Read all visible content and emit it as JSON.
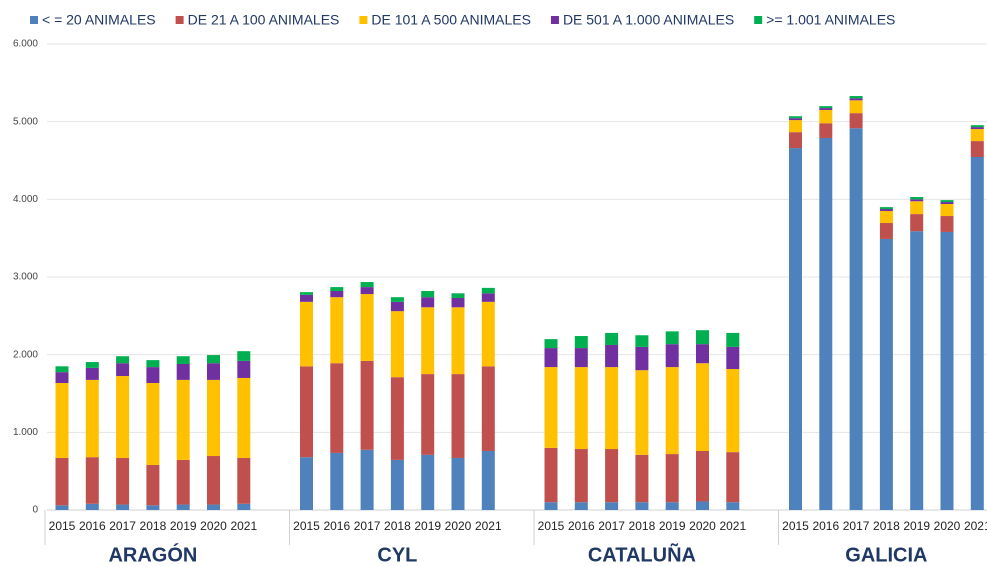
{
  "chart_data": {
    "type": "stacked_bar",
    "groups": [
      "ARAGÓN",
      "CYL",
      "CATALUÑA",
      "GALICIA"
    ],
    "categories": [
      "2015",
      "2016",
      "2017",
      "2018",
      "2019",
      "2020",
      "2021",
      "2015",
      "2016",
      "2017",
      "2018",
      "2019",
      "2020",
      "2021",
      "2015",
      "2016",
      "2017",
      "2018",
      "2019",
      "2020",
      "2021",
      "2015",
      "2016",
      "2017",
      "2018",
      "2019",
      "2020",
      "2021"
    ],
    "series": [
      {
        "name": "< = 20 ANIMALES",
        "color": "#4f81bd",
        "values": [
          60,
          80,
          70,
          60,
          70,
          70,
          80,
          680,
          735,
          775,
          645,
          710,
          670,
          760,
          100,
          100,
          100,
          100,
          100,
          110,
          100,
          4660,
          4790,
          4915,
          3490,
          3590,
          3580,
          4545
        ]
      },
      {
        "name": "DE 21 A 100 ANIMALES",
        "color": "#c0504d",
        "values": [
          610,
          600,
          600,
          520,
          575,
          625,
          590,
          1170,
          1155,
          1145,
          1065,
          1040,
          1080,
          1090,
          700,
          685,
          685,
          610,
          620,
          650,
          645,
          205,
          190,
          195,
          205,
          220,
          205,
          205
        ]
      },
      {
        "name": "DE 101 A 500 ANIMALES",
        "color": "#ffc000",
        "values": [
          965,
          995,
          1055,
          1055,
          1030,
          980,
          1030,
          830,
          850,
          860,
          850,
          860,
          860,
          830,
          1040,
          1055,
          1055,
          1090,
          1120,
          1130,
          1070,
          155,
          170,
          165,
          155,
          165,
          155,
          155
        ]
      },
      {
        "name": "DE 501 A 1.000 ANIMALES",
        "color": "#7030a0",
        "values": [
          140,
          155,
          165,
          205,
          205,
          215,
          220,
          90,
          80,
          90,
          120,
          130,
          120,
          110,
          245,
          245,
          285,
          300,
          295,
          245,
          285,
          25,
          25,
          25,
          25,
          25,
          25,
          25
        ]
      },
      {
        "name": ">= 1.001 ANIMALES",
        "color": "#00b050",
        "values": [
          75,
          75,
          90,
          90,
          100,
          105,
          125,
          35,
          50,
          65,
          60,
          80,
          60,
          70,
          115,
          155,
          155,
          150,
          165,
          180,
          180,
          25,
          25,
          30,
          25,
          30,
          25,
          25
        ]
      }
    ],
    "ylim": [
      0,
      6000
    ],
    "yticks": [
      0,
      {
        "value": 1000,
        "label": "1.000"
      },
      {
        "value": 2000,
        "label": "2.000"
      },
      {
        "value": 3000,
        "label": "3.000"
      },
      {
        "value": 4000,
        "label": "4.000"
      },
      {
        "value": 5000,
        "label": "5.000"
      },
      {
        "value": 6000,
        "label": "6.000"
      }
    ],
    "grid": true,
    "legend": "top"
  }
}
